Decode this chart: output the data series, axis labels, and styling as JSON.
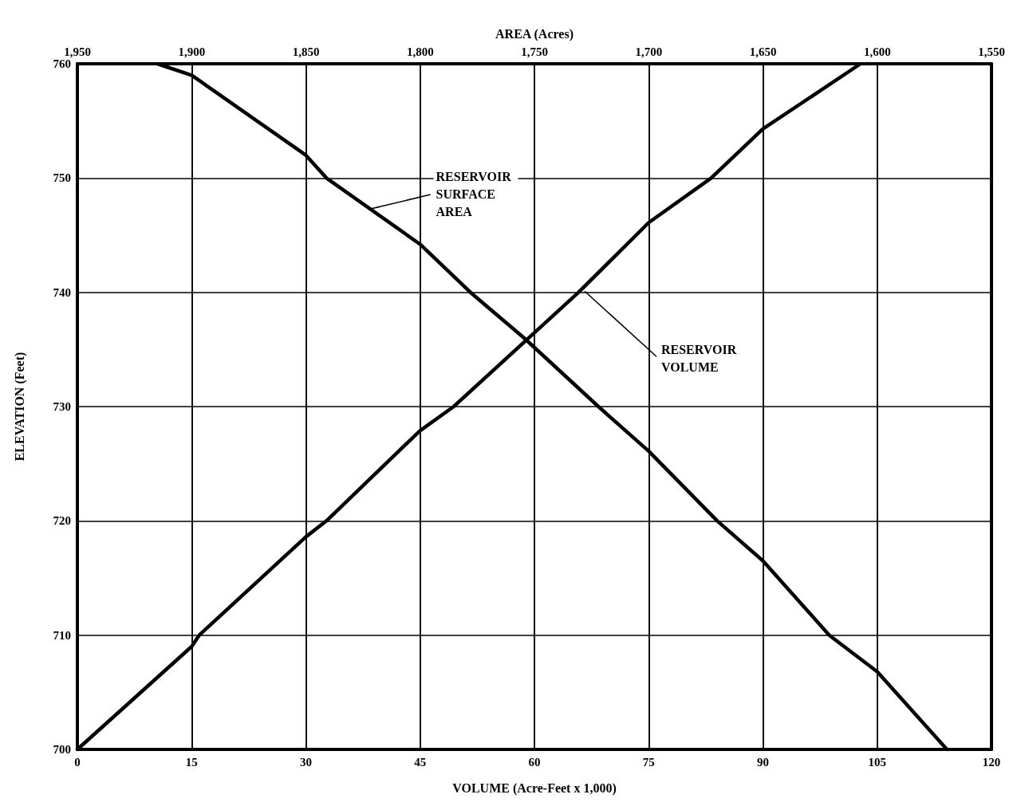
{
  "chart_data": {
    "type": "line",
    "xlabel": "VOLUME (Acre-Feet x 1,000)",
    "x2label": "AREA (Acres)",
    "ylabel": "ELEVATION (Feet)",
    "series": [
      {
        "color": "#000000",
        "x": [
          0,
          15,
          16,
          30,
          32.7,
          45,
          49.4,
          65.8,
          75,
          83.2,
          90,
          102.8
        ],
        "values": [
          700,
          709,
          710,
          718.6,
          720,
          727.9,
          730,
          740,
          746.1,
          750,
          754.3,
          760
        ]
      },
      {
        "color": "#000000",
        "axis": "x2",
        "x": [
          1915,
          1900,
          1850,
          1841,
          1800,
          1778,
          1754.5,
          1722,
          1700,
          1670,
          1650,
          1621,
          1600,
          1569.5
        ],
        "values": [
          760,
          759,
          752,
          750,
          744.2,
          740,
          736,
          730,
          726.1,
          720,
          716.5,
          710,
          706.8,
          700
        ]
      }
    ],
    "xlim": [
      0,
      120
    ],
    "xticks": [
      0,
      15,
      30,
      45,
      60,
      75,
      90,
      105,
      120
    ],
    "x2lim": [
      1950,
      1550
    ],
    "x2ticks": [
      {
        "value": 1950,
        "label": "1,950"
      },
      {
        "value": 1900,
        "label": "1,900"
      },
      {
        "value": 1850,
        "label": "1,850"
      },
      {
        "value": 1800,
        "label": "1,800"
      },
      {
        "value": 1750,
        "label": "1,750"
      },
      {
        "value": 1700,
        "label": "1,700"
      },
      {
        "value": 1650,
        "label": "1,650"
      },
      {
        "value": 1600,
        "label": "1,600"
      },
      {
        "value": 1550,
        "label": "1,550"
      }
    ],
    "ylim": [
      700,
      760
    ],
    "yticks": [
      700,
      710,
      720,
      730,
      740,
      750,
      760
    ],
    "annotations": [
      {
        "text": "RESERVOIR SURFACE AREA",
        "x": 38.5,
        "y": 747.3
      },
      {
        "text": "RESERVOIR VOLUME",
        "x": 66.6,
        "y": 740.1
      }
    ],
    "grid": true,
    "marker": "none",
    "line_style": "solid"
  }
}
